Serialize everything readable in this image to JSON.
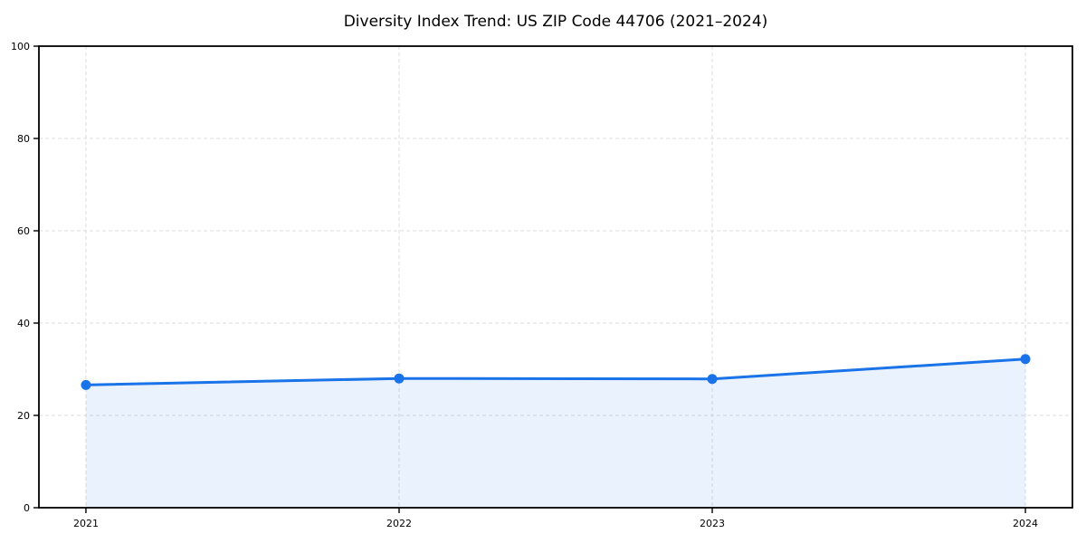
{
  "chart_data": {
    "type": "area",
    "title": "Diversity Index Trend: US ZIP Code 44706 (2021–2024)",
    "x": [
      "2021",
      "2022",
      "2023",
      "2024"
    ],
    "series": [
      {
        "name": "Diversity Index",
        "values": [
          26.6,
          28.0,
          27.9,
          32.2
        ]
      }
    ],
    "xlabel": "",
    "ylabel": "",
    "ylim": [
      0,
      100
    ],
    "yticks": [
      0,
      20,
      40,
      60,
      80,
      100
    ],
    "grid": "dashed, both axes",
    "legend_position": "none",
    "colors": {
      "line": "#1a73e8",
      "marker": "#1a73e8",
      "area_fill": "rgba(26,115,232,0.09)",
      "gridline": "#dcdcdc",
      "spine": "#000000",
      "background": "#ffffff"
    }
  }
}
